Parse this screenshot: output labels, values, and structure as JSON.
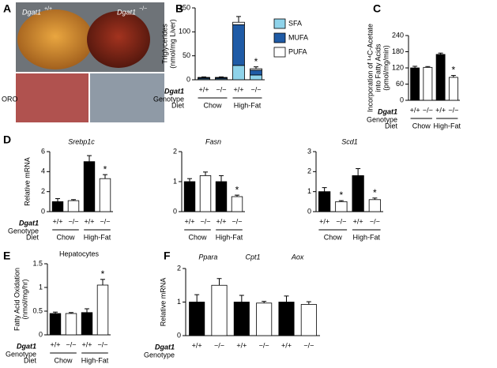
{
  "panel_a": {
    "label": "A",
    "left_gene": "Dgat1",
    "left_genotype": "+/+",
    "right_gene": "Dgat1",
    "right_genotype": "−/−",
    "stain": "ORO"
  },
  "chart_data": [
    {
      "panel": "B",
      "type": "bar",
      "stacked": true,
      "ylabel": [
        "Triglycerides",
        "(nmol/mg Liver)"
      ],
      "ylim": [
        0,
        150
      ],
      "yticks": [
        0,
        50,
        100,
        150
      ],
      "categories": [
        "+/+",
        "−/−",
        "+/+",
        "−/−"
      ],
      "groups": [
        "Chow",
        "High-Fat"
      ],
      "row_labels": [
        "Dgat1",
        "Genotype",
        "Diet"
      ],
      "series": [
        {
          "name": "SFA",
          "color": "#8fd3ea",
          "values": [
            2,
            2,
            30,
            10
          ]
        },
        {
          "name": "MUFA",
          "color": "#1f5ba6",
          "values": [
            2,
            2,
            85,
            10
          ]
        },
        {
          "name": "PUFA",
          "color": "#ffffff",
          "values": [
            1,
            1,
            5,
            3
          ]
        }
      ],
      "errors": [
        1,
        1,
        12,
        4
      ],
      "markers": [
        null,
        null,
        null,
        "*"
      ]
    },
    {
      "panel": "C",
      "type": "bar",
      "ylabel": [
        "Incorporation of ¹⁴C-Acetate",
        "into Fatty Acids",
        "(pmol/mg/min)"
      ],
      "ylim": [
        0,
        240
      ],
      "yticks": [
        0,
        60,
        120,
        180,
        240
      ],
      "categories": [
        "+/+",
        "−/−",
        "+/+",
        "−/−"
      ],
      "groups": [
        "Chow",
        "High-Fat"
      ],
      "row_labels": [
        "Dgat1",
        "Genotype",
        "Diet"
      ],
      "values": [
        120,
        122,
        170,
        85
      ],
      "errors": [
        6,
        3,
        5,
        7
      ],
      "colors": [
        "#000000",
        "#ffffff",
        "#000000",
        "#ffffff"
      ],
      "markers": [
        null,
        null,
        null,
        "*"
      ]
    },
    {
      "panel": "D",
      "type": "bar",
      "title": "Srebp1c",
      "ylabel": [
        "Relative mRNA"
      ],
      "ylim": [
        0,
        6
      ],
      "yticks": [
        0,
        2,
        4,
        6
      ],
      "categories": [
        "+/+",
        "−/−",
        "+/+",
        "−/−"
      ],
      "groups": [
        "Chow",
        "High-Fat"
      ],
      "row_labels": [
        "Dgat1",
        "Genotype",
        "Diet"
      ],
      "values": [
        1,
        1.1,
        5,
        3.3
      ],
      "errors": [
        0.3,
        0.1,
        0.6,
        0.4
      ],
      "colors": [
        "#000000",
        "#ffffff",
        "#000000",
        "#ffffff"
      ],
      "markers": [
        null,
        null,
        null,
        "*"
      ]
    },
    {
      "type": "bar",
      "title": "Fasn",
      "ylim": [
        0,
        2
      ],
      "yticks": [
        0,
        1,
        2
      ],
      "categories": [
        "+/+",
        "−/−",
        "+/+",
        "−/−"
      ],
      "groups": [
        "Chow",
        "High-Fat"
      ],
      "values": [
        1,
        1.2,
        1,
        0.5
      ],
      "errors": [
        0.1,
        0.12,
        0.2,
        0.05
      ],
      "colors": [
        "#000000",
        "#ffffff",
        "#000000",
        "#ffffff"
      ],
      "markers": [
        null,
        null,
        null,
        "*"
      ]
    },
    {
      "type": "bar",
      "title": "Scd1",
      "ylim": [
        0,
        3
      ],
      "yticks": [
        0,
        1,
        2,
        3
      ],
      "categories": [
        "+/+",
        "−/−",
        "+/+",
        "−/−"
      ],
      "groups": [
        "Chow",
        "High-Fat"
      ],
      "values": [
        1,
        0.5,
        1.8,
        0.6
      ],
      "errors": [
        0.2,
        0.05,
        0.35,
        0.08
      ],
      "colors": [
        "#000000",
        "#ffffff",
        "#000000",
        "#ffffff"
      ],
      "markers": [
        null,
        "*",
        null,
        "*"
      ]
    },
    {
      "panel": "E",
      "type": "bar",
      "title": "Hepatocytes",
      "ylabel": [
        "Fatty Acid Oxidation",
        "(nmol/mg/hr)"
      ],
      "ylim": [
        0,
        1.5
      ],
      "yticks": [
        0,
        0.5,
        1,
        1.5
      ],
      "categories": [
        "+/+",
        "−/−",
        "+/+",
        "−/−"
      ],
      "groups": [
        "Chow",
        "High-Fat"
      ],
      "row_labels": [
        "Dgat1",
        "Genotype",
        "Diet"
      ],
      "values": [
        0.45,
        0.45,
        0.47,
        1.05
      ],
      "errors": [
        0.03,
        0.02,
        0.08,
        0.12
      ],
      "colors": [
        "#000000",
        "#ffffff",
        "#000000",
        "#ffffff"
      ],
      "markers": [
        null,
        null,
        null,
        "*"
      ]
    },
    {
      "panel": "F",
      "type": "bar",
      "ylabel": [
        "Relative mRNA"
      ],
      "ylim": [
        0,
        2
      ],
      "yticks": [
        0,
        1,
        2
      ],
      "categories": [
        "+/+",
        "−/−",
        "+/+",
        "−/−",
        "+/+",
        "−/−"
      ],
      "groups": [
        "Ppara",
        "Cpt1",
        "Aox"
      ],
      "group_position": "top",
      "row_labels": [
        "Dgat1",
        "Genotype"
      ],
      "values": [
        1,
        1.5,
        1,
        0.97,
        1,
        0.93
      ],
      "errors": [
        0.22,
        0.2,
        0.2,
        0.05,
        0.18,
        0.08
      ],
      "colors": [
        "#000000",
        "#ffffff",
        "#000000",
        "#ffffff",
        "#000000",
        "#ffffff"
      ]
    }
  ]
}
